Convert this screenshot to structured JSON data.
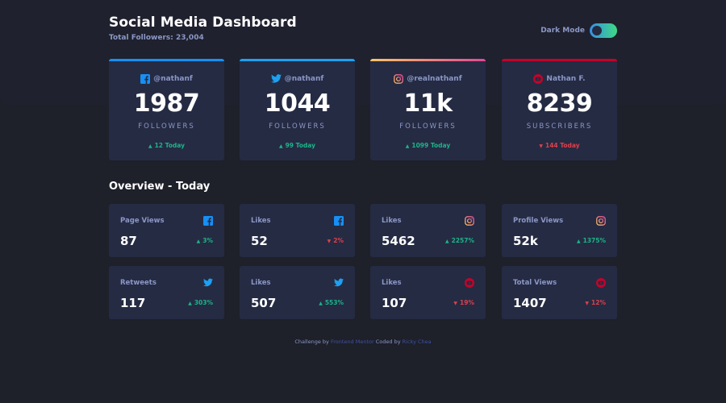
{
  "header": {
    "title": "Social Media Dashboard",
    "subtitle": "Total Followers: 23,004",
    "mode_label": "Dark Mode"
  },
  "colors": {
    "facebook": "#178ff5",
    "twitter": "#1ca0f2",
    "instagram_from": "#fdc468",
    "instagram_to": "#df4996",
    "youtube": "#c4032a",
    "up": "#1db489",
    "down": "#dc414c"
  },
  "cards": [
    {
      "icon": "facebook-icon",
      "handle": "@nathanf",
      "count": "1987",
      "unit": "FOLLOWERS",
      "delta": "12 Today",
      "trend": "up"
    },
    {
      "icon": "twitter-icon",
      "handle": "@nathanf",
      "count": "1044",
      "unit": "FOLLOWERS",
      "delta": "99 Today",
      "trend": "up"
    },
    {
      "icon": "instagram-icon",
      "handle": "@realnathanf",
      "count": "11k",
      "unit": "FOLLOWERS",
      "delta": "1099 Today",
      "trend": "up"
    },
    {
      "icon": "youtube-icon",
      "handle": "Nathan F.",
      "count": "8239",
      "unit": "SUBSCRIBERS",
      "delta": "144 Today",
      "trend": "down"
    }
  ],
  "overview": {
    "title": "Overview - Today",
    "items": [
      {
        "label": "Page Views",
        "icon": "facebook-icon",
        "value": "87",
        "pct": "3%",
        "trend": "up"
      },
      {
        "label": "Likes",
        "icon": "facebook-icon",
        "value": "52",
        "pct": "2%",
        "trend": "down"
      },
      {
        "label": "Likes",
        "icon": "instagram-icon",
        "value": "5462",
        "pct": "2257%",
        "trend": "up"
      },
      {
        "label": "Profile Views",
        "icon": "instagram-icon",
        "value": "52k",
        "pct": "1375%",
        "trend": "up"
      },
      {
        "label": "Retweets",
        "icon": "twitter-icon",
        "value": "117",
        "pct": "303%",
        "trend": "up"
      },
      {
        "label": "Likes",
        "icon": "twitter-icon",
        "value": "507",
        "pct": "553%",
        "trend": "up"
      },
      {
        "label": "Likes",
        "icon": "youtube-icon",
        "value": "107",
        "pct": "19%",
        "trend": "down"
      },
      {
        "label": "Total Views",
        "icon": "youtube-icon",
        "value": "1407",
        "pct": "12%",
        "trend": "down"
      }
    ]
  },
  "footer": {
    "prefix": "Challenge by",
    "link1": "Frontend Mentor",
    "middle": "Coded by",
    "link2": "Ricky Chea"
  }
}
